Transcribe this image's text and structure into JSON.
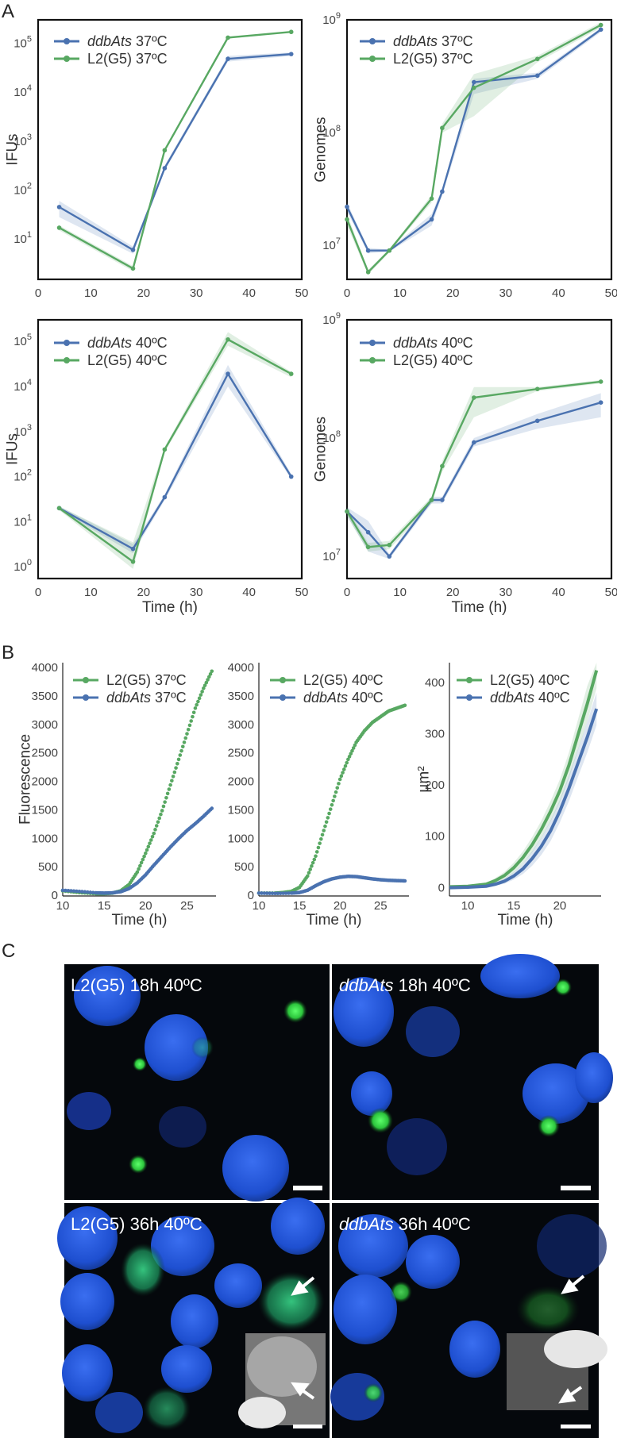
{
  "panel_labels": [
    "A",
    "B",
    "C"
  ],
  "colors": {
    "blue": "#4a72b0",
    "green": "#58a862",
    "gray_band": "#999999",
    "nucleus": "#1d4fd6",
    "inclusion": "#3fd24f"
  },
  "chart_data": [
    {
      "id": "A1",
      "type": "line",
      "yscale": "log",
      "xlabel": "",
      "ylabel": "IFUs",
      "xlim": [
        0,
        50
      ],
      "ylim": [
        1.5,
        300000
      ],
      "x_ticks": [
        "0",
        "10",
        "20",
        "30",
        "40",
        "50"
      ],
      "y_ticks": [
        {
          "v": 10,
          "b": "10",
          "e": "1"
        },
        {
          "v": 100,
          "b": "10",
          "e": "2"
        },
        {
          "v": 1000,
          "b": "10",
          "e": "3"
        },
        {
          "v": 10000,
          "b": "10",
          "e": "4"
        },
        {
          "v": 100000,
          "b": "10",
          "e": "5"
        }
      ],
      "series": [
        {
          "name": "ddbAts",
          "suffix": "37ºC",
          "italic": true,
          "color": "blue",
          "x": [
            4,
            18,
            24,
            36,
            48
          ],
          "values": [
            45,
            6,
            280,
            48000,
            60000
          ],
          "lo": [
            28,
            5,
            250,
            42000,
            55000
          ],
          "hi": [
            60,
            7,
            320,
            55000,
            65000
          ]
        },
        {
          "name": "L2(G5)",
          "suffix": "37ºC",
          "italic": false,
          "color": "green",
          "x": [
            4,
            18,
            24,
            36,
            48
          ],
          "values": [
            17,
            2.5,
            650,
            130000,
            170000
          ],
          "lo": [
            15,
            2.2,
            600,
            125000,
            165000
          ],
          "hi": [
            19,
            2.8,
            700,
            135000,
            175000
          ]
        }
      ]
    },
    {
      "id": "A2",
      "type": "line",
      "yscale": "log",
      "xlabel": "",
      "ylabel": "Genomes",
      "xlim": [
        0,
        50
      ],
      "ylim": [
        5000000,
        1000000000
      ],
      "x_ticks": [
        "0",
        "10",
        "20",
        "30",
        "40",
        "50"
      ],
      "y_ticks": [
        {
          "v": 10000000,
          "b": "10",
          "e": "7"
        },
        {
          "v": 100000000,
          "b": "10",
          "e": "8"
        },
        {
          "v": 1000000000,
          "b": "10",
          "e": "9"
        }
      ],
      "series": [
        {
          "name": "ddbAts",
          "suffix": "37ºC",
          "italic": true,
          "color": "blue",
          "x": [
            0,
            4,
            8,
            16,
            18,
            24,
            36,
            48
          ],
          "values": [
            22000000,
            9000000,
            9000000,
            17000000,
            30000000,
            280000000,
            320000000,
            820000000
          ],
          "lo": [
            20000000,
            8500000,
            8800000,
            15000000,
            28000000,
            220000000,
            300000000,
            780000000
          ],
          "hi": [
            24000000,
            9500000,
            9200000,
            19000000,
            32000000,
            300000000,
            340000000,
            850000000
          ]
        },
        {
          "name": "L2(G5)",
          "suffix": "37ºC",
          "italic": false,
          "color": "green",
          "x": [
            0,
            4,
            8,
            16,
            18,
            24,
            36,
            48
          ],
          "values": [
            17000000,
            5800000,
            9000000,
            26000000,
            110000000,
            250000000,
            450000000,
            900000000
          ],
          "lo": [
            15000000,
            5500000,
            8700000,
            24000000,
            100000000,
            140000000,
            420000000,
            850000000
          ],
          "hi": [
            19000000,
            6100000,
            9300000,
            28000000,
            120000000,
            330000000,
            480000000,
            950000000
          ]
        }
      ]
    },
    {
      "id": "A3",
      "type": "line",
      "yscale": "log",
      "xlabel": "Time (h)",
      "ylabel": "IFUs",
      "xlim": [
        0,
        50
      ],
      "ylim": [
        0.55,
        300000
      ],
      "x_ticks": [
        "0",
        "10",
        "20",
        "30",
        "40",
        "50"
      ],
      "y_ticks": [
        {
          "v": 1,
          "b": "10",
          "e": "0"
        },
        {
          "v": 10,
          "b": "10",
          "e": "1"
        },
        {
          "v": 100,
          "b": "10",
          "e": "2"
        },
        {
          "v": 1000,
          "b": "10",
          "e": "3"
        },
        {
          "v": 10000,
          "b": "10",
          "e": "4"
        },
        {
          "v": 100000,
          "b": "10",
          "e": "5"
        }
      ],
      "series": [
        {
          "name": "ddbAts",
          "suffix": "40ºC",
          "italic": true,
          "color": "blue",
          "x": [
            4,
            18,
            24,
            36,
            48
          ],
          "values": [
            20,
            2.5,
            35,
            19000,
            100
          ],
          "lo": [
            18,
            2,
            30,
            10000,
            90
          ],
          "hi": [
            22,
            3.2,
            40,
            30000,
            115
          ]
        },
        {
          "name": "L2(G5)",
          "suffix": "40ºC",
          "italic": false,
          "color": "green",
          "x": [
            4,
            18,
            24,
            36,
            48
          ],
          "values": [
            20,
            1.3,
            400,
            110000,
            19000
          ],
          "lo": [
            18,
            0.9,
            350,
            80000,
            16000
          ],
          "hi": [
            22,
            3.5,
            450,
            160000,
            21000
          ]
        }
      ]
    },
    {
      "id": "A4",
      "type": "line",
      "yscale": "log",
      "xlabel": "Time (h)",
      "ylabel": "Genomes",
      "xlim": [
        0,
        50
      ],
      "ylim": [
        6500000,
        1000000000
      ],
      "x_ticks": [
        "0",
        "10",
        "20",
        "30",
        "40",
        "50"
      ],
      "y_ticks": [
        {
          "v": 10000000,
          "b": "10",
          "e": "7"
        },
        {
          "v": 100000000,
          "b": "10",
          "e": "8"
        },
        {
          "v": 1000000000,
          "b": "10",
          "e": "9"
        }
      ],
      "series": [
        {
          "name": "ddbAts",
          "suffix": "40ºC",
          "italic": true,
          "color": "blue",
          "x": [
            0,
            4,
            8,
            16,
            18,
            24,
            36,
            48
          ],
          "values": [
            24000000,
            16000000,
            10000000,
            30000000,
            30000000,
            92000000,
            140000000,
            200000000
          ],
          "lo": [
            22000000,
            11000000,
            9500000,
            28000000,
            28000000,
            85000000,
            120000000,
            150000000
          ],
          "hi": [
            26000000,
            20000000,
            10500000,
            32000000,
            32000000,
            100000000,
            160000000,
            240000000
          ]
        },
        {
          "name": "L2(G5)",
          "suffix": "40ºC",
          "italic": false,
          "color": "green",
          "x": [
            0,
            4,
            8,
            16,
            18,
            24,
            36,
            48
          ],
          "values": [
            24000000,
            12000000,
            12500000,
            30000000,
            58000000,
            220000000,
            260000000,
            300000000
          ],
          "lo": [
            22000000,
            11000000,
            11500000,
            28000000,
            52000000,
            150000000,
            250000000,
            290000000
          ],
          "hi": [
            26000000,
            13000000,
            13500000,
            32000000,
            64000000,
            270000000,
            270000000,
            310000000
          ]
        }
      ]
    },
    {
      "id": "B1",
      "type": "scatter",
      "xlabel": "Time (h)",
      "ylabel": "Fluorescence",
      "xlim": [
        10,
        28.5
      ],
      "ylim": [
        0,
        4100
      ],
      "x_ticks": [
        "10",
        "15",
        "20",
        "25"
      ],
      "y_ticks": [
        "0",
        "500",
        "1000",
        "1500",
        "2000",
        "2500",
        "3000",
        "3500",
        "4000"
      ],
      "series": [
        {
          "name": "L2(G5)",
          "suffix": "37ºC",
          "italic": false,
          "color": "green",
          "x": [
            10,
            12,
            14,
            15,
            16,
            17,
            18,
            19,
            20,
            21,
            22,
            23,
            24,
            25,
            26,
            27,
            28
          ],
          "values": [
            90,
            60,
            40,
            40,
            50,
            90,
            200,
            420,
            750,
            1100,
            1500,
            1950,
            2400,
            2850,
            3300,
            3650,
            3950
          ]
        },
        {
          "name": "ddbAts",
          "suffix": "37ºC",
          "italic": true,
          "color": "blue",
          "x": [
            10,
            12,
            14,
            15,
            16,
            17,
            18,
            19,
            20,
            21,
            22,
            23,
            24,
            25,
            26,
            27,
            28
          ],
          "values": [
            100,
            80,
            55,
            50,
            55,
            75,
            130,
            230,
            370,
            540,
            700,
            860,
            1010,
            1150,
            1270,
            1400,
            1540
          ]
        }
      ]
    },
    {
      "id": "B2",
      "type": "scatter",
      "xlabel": "Time (h)",
      "ylabel": "",
      "xlim": [
        10,
        28.5
      ],
      "ylim": [
        0,
        4100
      ],
      "x_ticks": [
        "10",
        "15",
        "20",
        "25"
      ],
      "y_ticks": [
        "0",
        "500",
        "1000",
        "1500",
        "2000",
        "2500",
        "3000",
        "3500",
        "4000"
      ],
      "series": [
        {
          "name": "L2(G5)",
          "suffix": "40ºC",
          "italic": false,
          "color": "green",
          "x": [
            10,
            12,
            13,
            14,
            15,
            16,
            17,
            18,
            19,
            20,
            21,
            22,
            23,
            24,
            25,
            26,
            27,
            28
          ],
          "values": [
            50,
            50,
            60,
            80,
            150,
            350,
            700,
            1150,
            1600,
            2050,
            2400,
            2700,
            2900,
            3050,
            3150,
            3250,
            3300,
            3350
          ]
        },
        {
          "name": "ddbAts",
          "suffix": "40ºC",
          "italic": true,
          "color": "blue",
          "x": [
            10,
            12,
            14,
            15,
            16,
            17,
            18,
            19,
            20,
            21,
            22,
            23,
            24,
            25,
            26,
            27,
            28
          ],
          "values": [
            50,
            45,
            50,
            60,
            100,
            180,
            250,
            300,
            330,
            345,
            340,
            320,
            300,
            285,
            275,
            270,
            265
          ]
        }
      ]
    },
    {
      "id": "B3",
      "type": "line",
      "xlabel": "Time (h)",
      "ylabel": "µm²",
      "xlim": [
        8,
        24.5
      ],
      "ylim": [
        -15,
        440
      ],
      "x_ticks": [
        "10",
        "15",
        "20"
      ],
      "y_ticks": [
        "0",
        "100",
        "200",
        "300",
        "400"
      ],
      "series": [
        {
          "name": "L2(G5)",
          "suffix": "40ºC",
          "italic": false,
          "color": "green",
          "x": [
            8,
            10,
            12,
            13,
            14,
            15,
            16,
            17,
            18,
            19,
            20,
            21,
            22,
            23,
            24
          ],
          "values": [
            3,
            4,
            8,
            15,
            25,
            40,
            60,
            85,
            115,
            150,
            190,
            240,
            300,
            360,
            425
          ],
          "lo": [
            1,
            2,
            5,
            10,
            18,
            30,
            48,
            70,
            98,
            130,
            168,
            215,
            270,
            325,
            390
          ],
          "hi": [
            5,
            6,
            11,
            20,
            32,
            50,
            72,
            100,
            132,
            170,
            212,
            265,
            330,
            395,
            440
          ]
        },
        {
          "name": "ddbAts",
          "suffix": "40ºC",
          "italic": true,
          "color": "blue",
          "x": [
            8,
            10,
            12,
            13,
            14,
            15,
            16,
            17,
            18,
            19,
            20,
            21,
            22,
            23,
            24
          ],
          "values": [
            1,
            2,
            4,
            8,
            14,
            24,
            38,
            58,
            82,
            112,
            150,
            195,
            245,
            295,
            350
          ],
          "lo": [
            0,
            1,
            2,
            5,
            9,
            17,
            28,
            44,
            65,
            92,
            128,
            170,
            218,
            265,
            318
          ],
          "hi": [
            2,
            3,
            6,
            11,
            19,
            31,
            48,
            72,
            99,
            132,
            172,
            220,
            272,
            325,
            382
          ]
        }
      ]
    }
  ],
  "micrographs": [
    {
      "label_pre": "L2(G5)",
      "label_post": " 18h 40ºC",
      "italic": false
    },
    {
      "label_pre": "ddbAts",
      "label_post": " 18h 40ºC",
      "italic": true
    },
    {
      "label_pre": "L2(G5)",
      "label_post": " 36h 40ºC",
      "italic": false
    },
    {
      "label_pre": "ddbAts",
      "label_post": " 36h 40ºC",
      "italic": true
    }
  ]
}
